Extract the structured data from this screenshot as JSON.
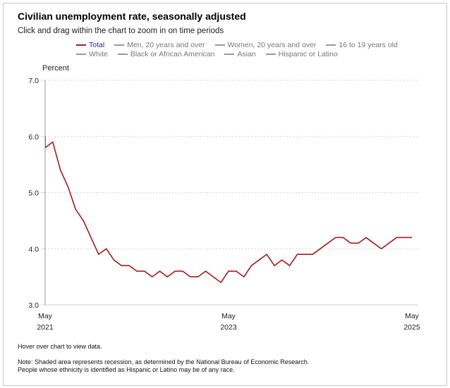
{
  "chart_data": {
    "type": "line",
    "title": "Civilian unemployment rate, seasonally adjusted",
    "subtitle": "Click and drag within the chart to zoom in on time periods",
    "ylabel": "Percent",
    "ylim": [
      3.0,
      7.0
    ],
    "yticks": [
      "3.0",
      "4.0",
      "5.0",
      "6.0",
      "7.0"
    ],
    "xlim": [
      "2021-05",
      "2025-05"
    ],
    "xticks": [
      {
        "date": "2021-05",
        "month": "May",
        "year": "2021"
      },
      {
        "date": "2023-05",
        "month": "May",
        "year": "2023"
      },
      {
        "date": "2025-05",
        "month": "May",
        "year": "2025"
      }
    ],
    "grid": true,
    "legend": [
      "Total",
      "Men, 20 years and over",
      "Women, 20 years and over",
      "16 to 19 years old",
      "White",
      "Black or African American",
      "Asian",
      "Hispanic or Latino"
    ],
    "legend_placement": "top",
    "colors": {
      "Total": "#a51c1c",
      "inactive": "#999999"
    },
    "series": [
      {
        "name": "Total",
        "start": "2021-04",
        "values": [
          6.0,
          5.8,
          5.9,
          5.4,
          5.1,
          4.7,
          4.5,
          4.2,
          3.9,
          4.0,
          3.8,
          3.7,
          3.7,
          3.6,
          3.6,
          3.5,
          3.6,
          3.5,
          3.6,
          3.6,
          3.5,
          3.5,
          3.6,
          3.5,
          3.4,
          3.6,
          3.6,
          3.5,
          3.7,
          3.8,
          3.9,
          3.7,
          3.8,
          3.7,
          3.9,
          3.9,
          3.9,
          4.0,
          4.1,
          4.2,
          4.2,
          4.1,
          4.1,
          4.2,
          4.1,
          4.0,
          4.1,
          4.2,
          4.2,
          4.2
        ]
      }
    ]
  },
  "notes": {
    "hover": "Hover over chart to view data.",
    "note1": "Note: Shaded area represents recession, as determined by the National Bureau of Economic Research.",
    "note2": "People whose ethnicity is identified as Hispanic or Latino may be of any race."
  }
}
